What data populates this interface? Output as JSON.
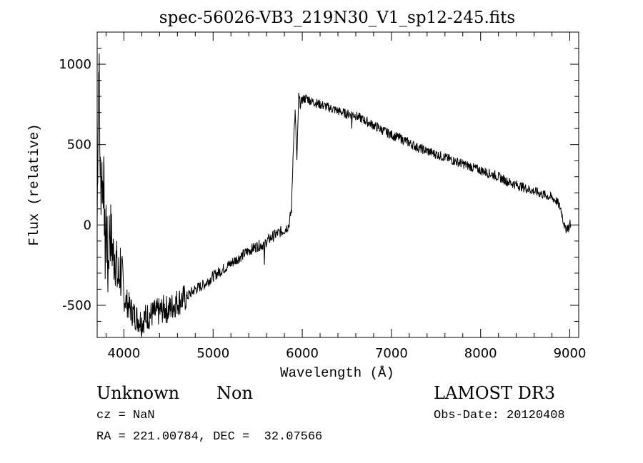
{
  "chart_data": {
    "type": "line",
    "title": "spec-56026-VB3_219N30_V1_sp12-245.fits",
    "xlabel": "Wavelength (Å)",
    "ylabel": "Flux (relative)",
    "xlim": [
      3700,
      9100
    ],
    "ylim": [
      -700,
      1200
    ],
    "xticks": [
      4000,
      5000,
      6000,
      7000,
      8000,
      9000
    ],
    "yticks": [
      -500,
      0,
      500,
      1000
    ],
    "grid": false,
    "series": [
      {
        "color": "#000000",
        "x": [
          3700,
          3710,
          3720,
          3730,
          3740,
          3750,
          3760,
          3770,
          3780,
          3790,
          3800,
          3820,
          3840,
          3860,
          3880,
          3900,
          3920,
          3940,
          3960,
          3980,
          4000,
          4050,
          4100,
          4150,
          4200,
          4250,
          4300,
          4350,
          4400,
          4450,
          4500,
          4550,
          4600,
          4700,
          4800,
          4900,
          5000,
          5100,
          5200,
          5300,
          5400,
          5500,
          5570,
          5575,
          5580,
          5600,
          5700,
          5800,
          5850,
          5880,
          5900,
          5920,
          5940,
          5960,
          5980,
          6000,
          6050,
          6100,
          6200,
          6300,
          6400,
          6500,
          6550,
          6555,
          6560,
          6600,
          6700,
          6800,
          6900,
          7000,
          7100,
          7200,
          7300,
          7400,
          7500,
          7600,
          7700,
          7800,
          7900,
          8000,
          8100,
          8200,
          8300,
          8400,
          8500,
          8600,
          8700,
          8800,
          8850,
          8900,
          8930,
          8950,
          8970,
          8990,
          9000,
          9010
        ],
        "y": [
          0,
          650,
          1100,
          500,
          200,
          350,
          250,
          300,
          100,
          -200,
          50,
          -300,
          0,
          -100,
          -200,
          -150,
          -300,
          -350,
          -250,
          -400,
          -450,
          -500,
          -550,
          -580,
          -600,
          -570,
          -560,
          -550,
          -540,
          -520,
          -530,
          -500,
          -480,
          -450,
          -400,
          -370,
          -320,
          -280,
          -240,
          -200,
          -160,
          -130,
          -120,
          -280,
          -120,
          -100,
          -60,
          -30,
          0,
          100,
          500,
          700,
          400,
          800,
          750,
          780,
          790,
          770,
          750,
          730,
          710,
          690,
          690,
          600,
          690,
          680,
          650,
          620,
          590,
          560,
          540,
          510,
          480,
          460,
          440,
          420,
          400,
          380,
          360,
          340,
          320,
          300,
          270,
          250,
          230,
          210,
          190,
          170,
          150,
          100,
          20,
          -30,
          -10,
          -20,
          10,
          0
        ]
      }
    ],
    "annotations": {
      "object_class": "Unknown",
      "subclass": "Non",
      "cz": "cz = NaN",
      "coords": "RA = 221.00784, DEC =  32.07566",
      "survey": "LAMOST DR3",
      "obs_date": "Obs-Date: 20120408"
    }
  }
}
